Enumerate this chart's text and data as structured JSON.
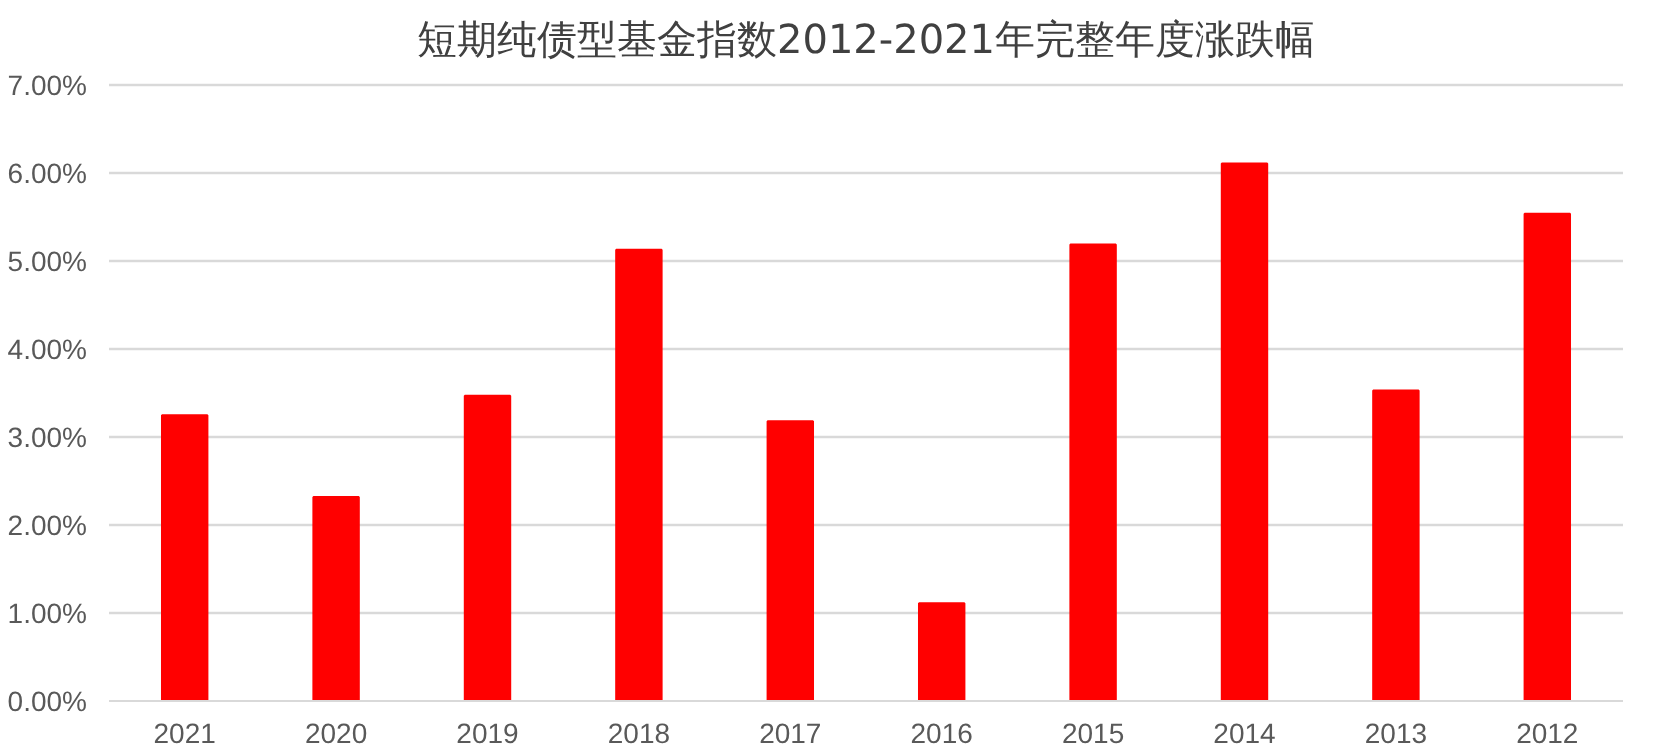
{
  "chart_data": {
    "type": "bar",
    "title": "短期纯债型基金指数2012-2021年完整年度涨跌幅",
    "categories": [
      "2021",
      "2020",
      "2019",
      "2018",
      "2017",
      "2016",
      "2015",
      "2014",
      "2013",
      "2012"
    ],
    "values": [
      3.25,
      2.32,
      3.47,
      5.13,
      3.18,
      1.11,
      5.19,
      6.11,
      3.53,
      5.54
    ],
    "color": "#ff0000",
    "ylim": [
      0,
      7
    ],
    "yticks": [
      {
        "value": 0,
        "label": "0.00%"
      },
      {
        "value": 1,
        "label": "1.00%"
      },
      {
        "value": 2,
        "label": "2.00%"
      },
      {
        "value": 3,
        "label": "3.00%"
      },
      {
        "value": 4,
        "label": "4.00%"
      },
      {
        "value": 5,
        "label": "5.00%"
      },
      {
        "value": 6,
        "label": "6.00%"
      },
      {
        "value": 7,
        "label": "7.00%"
      }
    ],
    "grid": "y"
  }
}
